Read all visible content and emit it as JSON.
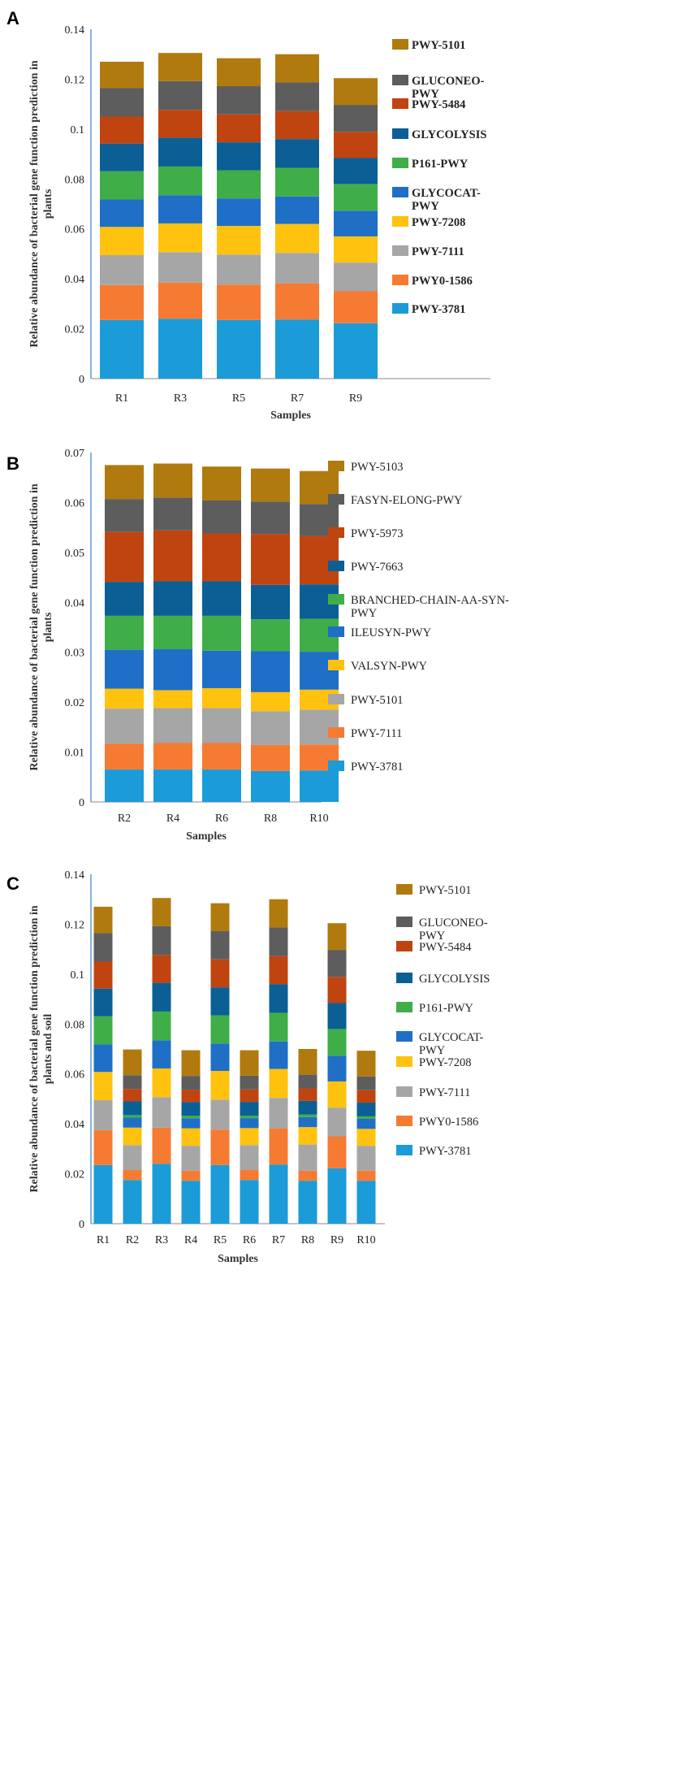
{
  "figure": {
    "panel_labels": [
      "A",
      "B",
      "C"
    ]
  },
  "colors": {
    "pwy_3781": "#1b9bd7",
    "pwy0_1586": "#f57b32",
    "pwy_7111": "#a6a6a6",
    "pwy_7208": "#ffc20e",
    "glycocat": "#1f6fc6",
    "p161": "#3fae49",
    "glycolysis": "#0b5f95",
    "pwy_5484": "#c0440f",
    "gluconeo": "#5d5d5d",
    "pwy_5101_top": "#b07a0e"
  },
  "chart_data": [
    {
      "panel": "A",
      "type": "bar",
      "stacked": true,
      "title": "",
      "xlabel": "Samples",
      "ylabel": "Relative abundance of bacterial gene function prediction in plants",
      "ylim": [
        0,
        0.14
      ],
      "yticks": [
        "0",
        "0.02",
        "0.04",
        "0.06",
        "0.08",
        "0.1",
        "0.12",
        "0.14"
      ],
      "categories": [
        "R1",
        "R3",
        "R5",
        "R7",
        "R9"
      ],
      "legend": [
        "PWY-5101",
        "GLUCONEO-PWY",
        "PWY-5484",
        "GLYCOLYSIS",
        "P161-PWY",
        "GLYCOCAT-PWY",
        "PWY-7208",
        "PWY-7111",
        "PWY0-1586",
        "PWY-3781"
      ],
      "series": [
        {
          "name": "PWY-3781",
          "color": "#1b9bd7",
          "values": [
            0.0235,
            0.024,
            0.0235,
            0.0237,
            0.0222
          ]
        },
        {
          "name": "PWY0-1586",
          "color": "#f57b32",
          "values": [
            0.014,
            0.0145,
            0.0142,
            0.0145,
            0.0128
          ]
        },
        {
          "name": "PWY-7111",
          "color": "#a6a6a6",
          "values": [
            0.012,
            0.0122,
            0.012,
            0.0122,
            0.0115
          ]
        },
        {
          "name": "PWY-7208",
          "color": "#ffc20e",
          "values": [
            0.0113,
            0.0115,
            0.0115,
            0.0116,
            0.0105
          ]
        },
        {
          "name": "GLYCOCAT-PWY",
          "color": "#1f6fc6",
          "values": [
            0.011,
            0.0113,
            0.011,
            0.011,
            0.0103
          ]
        },
        {
          "name": "P161-PWY",
          "color": "#3fae49",
          "values": [
            0.0113,
            0.0115,
            0.0113,
            0.0115,
            0.0107
          ]
        },
        {
          "name": "GLYCOLYSIS",
          "color": "#0b5f95",
          "values": [
            0.0111,
            0.0115,
            0.0112,
            0.0115,
            0.0104
          ]
        },
        {
          "name": "PWY-5484",
          "color": "#c0440f",
          "values": [
            0.0108,
            0.0112,
            0.0112,
            0.0112,
            0.0105
          ]
        },
        {
          "name": "GLUCONEO-PWY",
          "color": "#5d5d5d",
          "values": [
            0.0115,
            0.0115,
            0.0113,
            0.0115,
            0.0108
          ]
        },
        {
          "name": "PWY-5101",
          "color": "#b07a0e",
          "values": [
            0.0105,
            0.0113,
            0.0112,
            0.0113,
            0.0107
          ]
        }
      ]
    },
    {
      "panel": "B",
      "type": "bar",
      "stacked": true,
      "title": "",
      "xlabel": "Samples",
      "ylabel": "Relative abundance of bacterial gene function prediction in plants",
      "ylim": [
        0,
        0.07
      ],
      "yticks": [
        "0",
        "0.01",
        "0.02",
        "0.03",
        "0.04",
        "0.05",
        "0.06",
        "0.07"
      ],
      "categories": [
        "R2",
        "R4",
        "R6",
        "R8",
        "R10"
      ],
      "legend": [
        "PWY-5103",
        "FASYN-ELONG-PWY",
        "PWY-5973",
        "PWY-7663",
        "BRANCHED-CHAIN-AA-SYN-PWY",
        "ILEUSYN-PWY",
        "VALSYN-PWY",
        "PWY-5101",
        "PWY-7111",
        "PWY-3781"
      ],
      "series": [
        {
          "name": "PWY-3781",
          "color": "#1b9bd7",
          "values": [
            0.0065,
            0.0065,
            0.0065,
            0.0062,
            0.0063
          ]
        },
        {
          "name": "PWY-7111",
          "color": "#f57b32",
          "values": [
            0.0052,
            0.0053,
            0.0053,
            0.0052,
            0.0052
          ]
        },
        {
          "name": "PWY-5101",
          "color": "#a6a6a6",
          "values": [
            0.007,
            0.007,
            0.007,
            0.0068,
            0.007
          ]
        },
        {
          "name": "VALSYN-PWY",
          "color": "#ffc20e",
          "values": [
            0.004,
            0.0036,
            0.004,
            0.0038,
            0.004
          ]
        },
        {
          "name": "ILEUSYN-PWY",
          "color": "#1f6fc6",
          "values": [
            0.0078,
            0.0082,
            0.0075,
            0.0082,
            0.0076
          ]
        },
        {
          "name": "BRANCHED-CHAIN-AA-SYN-PWY",
          "color": "#3fae49",
          "values": [
            0.0068,
            0.0067,
            0.007,
            0.0064,
            0.0066
          ]
        },
        {
          "name": "PWY-7663",
          "color": "#0b5f95",
          "values": [
            0.0068,
            0.0069,
            0.0069,
            0.0069,
            0.0069
          ]
        },
        {
          "name": "PWY-5973",
          "color": "#c0440f",
          "values": [
            0.01,
            0.0102,
            0.0096,
            0.0102,
            0.0097
          ]
        },
        {
          "name": "FASYN-ELONG-PWY",
          "color": "#5d5d5d",
          "values": [
            0.0066,
            0.0066,
            0.0066,
            0.0065,
            0.0064
          ]
        },
        {
          "name": "PWY-5103",
          "color": "#b07a0e",
          "values": [
            0.0068,
            0.0068,
            0.0068,
            0.0066,
            0.0066
          ]
        }
      ]
    },
    {
      "panel": "C",
      "type": "bar",
      "stacked": true,
      "title": "",
      "xlabel": "Samples",
      "ylabel": "Relative abundance of bacterial gene function prediction in plants and soil",
      "ylim": [
        0,
        0.14
      ],
      "yticks": [
        "0",
        "0.02",
        "0.04",
        "0.06",
        "0.08",
        "0.1",
        "0.12",
        "0.14"
      ],
      "categories": [
        "R1",
        "R2",
        "R3",
        "R4",
        "R5",
        "R6",
        "R7",
        "R8",
        "R9",
        "R10"
      ],
      "legend": [
        "PWY-5101",
        "GLUCONEO-PWY",
        "PWY-5484",
        "GLYCOLYSIS",
        "P161-PWY",
        "GLYCOCAT-PWY",
        "PWY-7208",
        "PWY-7111",
        "PWY0-1586",
        "PWY-3781"
      ],
      "series": [
        {
          "name": "PWY-3781",
          "color": "#1b9bd7",
          "values": [
            0.0235,
            0.0175,
            0.024,
            0.0172,
            0.0235,
            0.0175,
            0.0237,
            0.0172,
            0.0222,
            0.0172
          ]
        },
        {
          "name": "PWY0-1586",
          "color": "#f57b32",
          "values": [
            0.014,
            0.004,
            0.0145,
            0.004,
            0.0142,
            0.004,
            0.0145,
            0.004,
            0.0128,
            0.004
          ]
        },
        {
          "name": "PWY-7111",
          "color": "#a6a6a6",
          "values": [
            0.012,
            0.01,
            0.0122,
            0.01,
            0.012,
            0.01,
            0.0122,
            0.0105,
            0.0115,
            0.01
          ]
        },
        {
          "name": "PWY-7208",
          "color": "#ffc20e",
          "values": [
            0.0113,
            0.007,
            0.0115,
            0.007,
            0.0115,
            0.0068,
            0.0116,
            0.007,
            0.0105,
            0.0068
          ]
        },
        {
          "name": "GLYCOCAT-PWY",
          "color": "#1f6fc6",
          "values": [
            0.011,
            0.004,
            0.0113,
            0.004,
            0.011,
            0.004,
            0.011,
            0.004,
            0.0103,
            0.004
          ]
        },
        {
          "name": "P161-PWY",
          "color": "#3fae49",
          "values": [
            0.0113,
            0.001,
            0.0115,
            0.001,
            0.0113,
            0.001,
            0.0115,
            0.001,
            0.0107,
            0.001
          ]
        },
        {
          "name": "GLYCOLYSIS",
          "color": "#0b5f95",
          "values": [
            0.0111,
            0.0055,
            0.0115,
            0.0055,
            0.0112,
            0.0055,
            0.0115,
            0.0055,
            0.0104,
            0.0055
          ]
        },
        {
          "name": "PWY-5484",
          "color": "#c0440f",
          "values": [
            0.0108,
            0.005,
            0.0112,
            0.005,
            0.0112,
            0.005,
            0.0112,
            0.005,
            0.0105,
            0.005
          ]
        },
        {
          "name": "GLUCONEO-PWY",
          "color": "#5d5d5d",
          "values": [
            0.0115,
            0.0055,
            0.0115,
            0.0055,
            0.0113,
            0.0055,
            0.0115,
            0.0055,
            0.0108,
            0.0055
          ]
        },
        {
          "name": "PWY-5101",
          "color": "#b07a0e",
          "values": [
            0.0105,
            0.0103,
            0.0113,
            0.0103,
            0.0112,
            0.0102,
            0.0113,
            0.0103,
            0.0107,
            0.0103
          ]
        }
      ]
    }
  ]
}
